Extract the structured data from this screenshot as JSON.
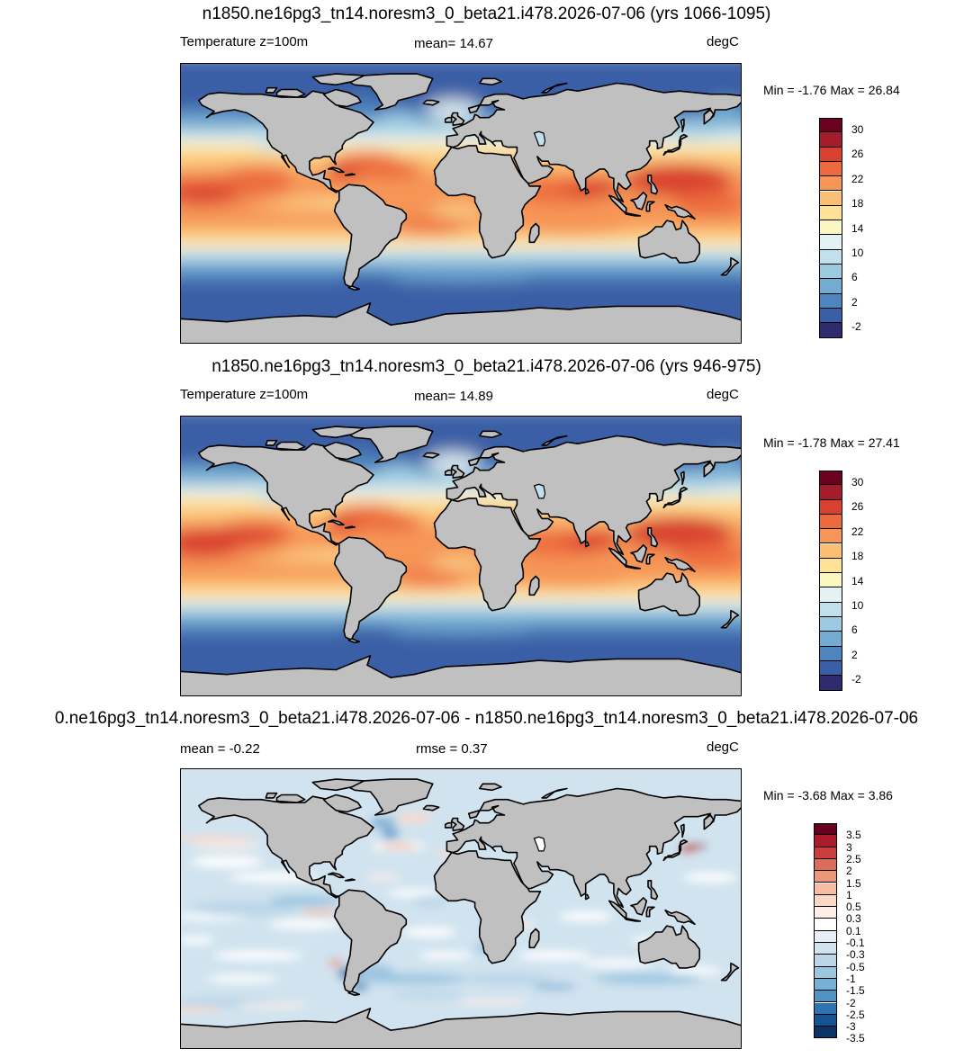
{
  "panels": [
    {
      "title": "n1850.ne16pg3_tn14.noresm3_0_beta21.i478.2026-07-06 (yrs 1066-1095)",
      "left_label": "Temperature z=100m",
      "center_label": "mean=  14.67",
      "right_label": "degC",
      "minmax": "Min =  -1.76 Max =  26.84",
      "colorbar_ticks": [
        "30",
        "26",
        "22",
        "18",
        "14",
        "10",
        "6",
        "2",
        "-2"
      ]
    },
    {
      "title": "n1850.ne16pg3_tn14.noresm3_0_beta21.i478.2026-07-06 (yrs 946-975)",
      "left_label": "Temperature z=100m",
      "center_label": "mean=  14.89",
      "right_label": "degC",
      "minmax": "Min =  -1.78 Max =  27.41",
      "colorbar_ticks": [
        "30",
        "26",
        "22",
        "18",
        "14",
        "10",
        "6",
        "2",
        "-2"
      ]
    },
    {
      "title": "0.ne16pg3_tn14.noresm3_0_beta21.i478.2026-07-06 - n1850.ne16pg3_tn14.noresm3_0_beta21.i478.2026-07-06",
      "left_label": "mean =  -0.22",
      "center_label": "rmse =   0.37",
      "right_label": "degC",
      "minmax": "Min =  -3.68 Max =   3.86",
      "colorbar_ticks": [
        "3.5",
        "3",
        "2.5",
        "2",
        "1.5",
        "1",
        "0.5",
        "0.3",
        "0.1",
        "-0.1",
        "-0.3",
        "-0.5",
        "-1",
        "-1.5",
        "-2",
        "-2.5",
        "-3",
        "-3.5"
      ]
    }
  ],
  "colors": {
    "land": "#c0c0c0",
    "temperature_scale": [
      "#6a0220",
      "#a51d2c",
      "#d8412f",
      "#ec6a3d",
      "#f69556",
      "#fbbf74",
      "#fde196",
      "#fbf7c1",
      "#e4f2f3",
      "#c2e0ec",
      "#9ccbe1",
      "#74acd1",
      "#4f85be",
      "#3a5fa6",
      "#302a6e"
    ],
    "difference_scale": [
      "#67001f",
      "#ac1a2e",
      "#cc3d3d",
      "#dc6b57",
      "#eb9879",
      "#f6bda2",
      "#fcd9c6",
      "#fdefe6",
      "#ffffff",
      "#e6eff7",
      "#d0e3ef",
      "#bad6e8",
      "#9cc6e0",
      "#78afd4",
      "#4d93c4",
      "#2c74b2",
      "#155493",
      "#0b3466"
    ]
  }
}
